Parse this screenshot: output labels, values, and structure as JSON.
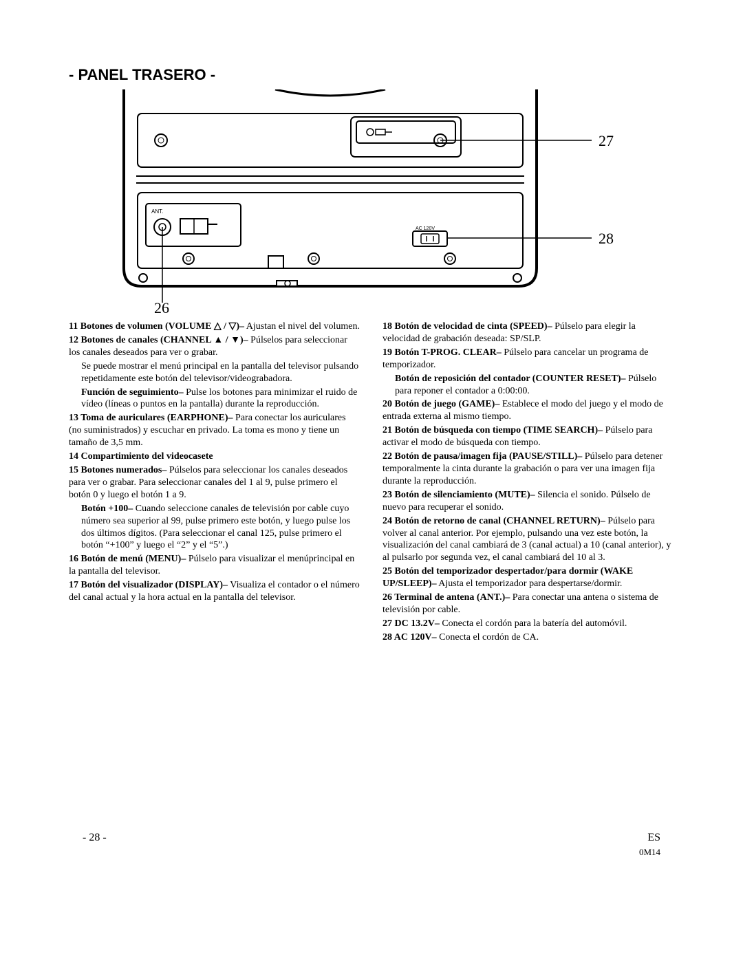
{
  "title": "- PANEL TRASERO -",
  "callouts": {
    "c26": "26",
    "c27": "27",
    "c28": "28"
  },
  "diagram_labels": {
    "ant": "ANT.",
    "ac": "AC 120V"
  },
  "left": [
    {
      "num": "11",
      "lead": "Botones de volumen (VOLUME △ / ▽)–",
      "body": " Ajustan el nivel del volumen."
    },
    {
      "num": "12",
      "lead": "Botones de canales (CHANNEL ▲ / ▼)–",
      "body": " Púlselos para seleccionar los canales deseados para ver o grabar."
    },
    {
      "sub": true,
      "body": "Se puede mostrar el menú principal en la pantalla del televisor pulsando repetidamente este botón del televisor/videograbadora."
    },
    {
      "sub": true,
      "lead": "Función de seguimiento–",
      "body": " Pulse los botones para minimizar el ruido de vídeo (líneas o puntos en la pantalla) durante la reproducción."
    },
    {
      "num": "13",
      "lead": "Toma de auriculares (EARPHONE)–",
      "body": " Para conectar los auriculares (no suministrados) y escuchar en privado. La toma es mono y tiene un tamaño de 3,5 mm."
    },
    {
      "num": "14",
      "lead": "Compartimiento del videocasete",
      "body": ""
    },
    {
      "num": "15",
      "lead": "Botones numerados–",
      "body": " Púlselos para seleccionar los canales deseados para ver o grabar. Para seleccionar canales del 1 al 9, pulse primero el botón 0 y luego el botón 1 a 9."
    },
    {
      "sub": true,
      "lead": "Botón +100–",
      "body": " Cuando seleccione canales de televisión por cable cuyo número sea superior al 99, pulse primero este botón, y luego pulse los dos últimos dígitos. (Para seleccionar el canal 125, pulse primero el botón “+100” y luego el “2” y el “5”.)"
    },
    {
      "num": "16",
      "lead": "Botón de menú (MENU)–",
      "body": " Púlselo para visualizar el menúprincipal en la pantalla del televisor."
    },
    {
      "num": "17",
      "lead": "Botón del visualizador (DISPLAY)–",
      "body": " Visualiza el contador o el número del canal actual y la hora actual en la pantalla del televisor."
    }
  ],
  "right": [
    {
      "num": "18",
      "lead": "Botón de velocidad de cinta (SPEED)–",
      "body": " Púlselo para elegir la velocidad de grabación deseada: SP/SLP."
    },
    {
      "num": "19",
      "lead": "Botón T-PROG. CLEAR–",
      "body": " Púlselo para cancelar un programa de temporizador."
    },
    {
      "sub": true,
      "lead": "Botón de reposición del contador (COUNTER RESET)–",
      "body": " Púlselo para reponer el contador a 0:00:00."
    },
    {
      "num": "20",
      "lead": "Botón de juego (GAME)–",
      "body": " Establece el modo del juego y el modo de entrada externa al mismo tiempo."
    },
    {
      "num": "21",
      "lead": "Botón de búsqueda con tiempo (TIME SEARCH)–",
      "body": " Púlselo para activar el modo de búsqueda con tiempo."
    },
    {
      "num": "22",
      "lead": "Botón de pausa/imagen fija (PAUSE/STILL)–",
      "body": " Púlselo para detener temporalmente la cinta durante la grabación o para ver una imagen fija durante la reproducción."
    },
    {
      "num": "23",
      "lead": "Botón de silenciamiento (MUTE)–",
      "body": " Silencia el sonido. Púlselo de nuevo para recuperar el sonido."
    },
    {
      "num": "24",
      "lead": "Botón de retorno de canal (CHANNEL RETURN)–",
      "body": " Púlselo para volver al canal anterior. Por ejemplo, pulsando una vez este botón, la visualización del canal cambiará de 3 (canal actual) a 10 (canal anterior), y al pulsarlo por segunda vez, el canal cambiará del 10 al 3."
    },
    {
      "num": "25",
      "lead": "Botón del temporizador despertador/para dormir (WAKE UP/SLEEP)–",
      "body": " Ajusta el temporizador para despertarse/dormir."
    },
    {
      "num": "26",
      "lead": "Terminal de antena (ANT.)–",
      "body": " Para conectar una antena o sistema de televisión por cable."
    },
    {
      "num": "27",
      "lead": "DC 13.2V–",
      "body": " Conecta el cordón para la batería del automóvil."
    },
    {
      "num": "28",
      "lead": "AC 120V–",
      "body": " Conecta el cordón de CA."
    }
  ],
  "footer": {
    "page": "- 28 -",
    "lang": "ES",
    "code": "0M14"
  }
}
